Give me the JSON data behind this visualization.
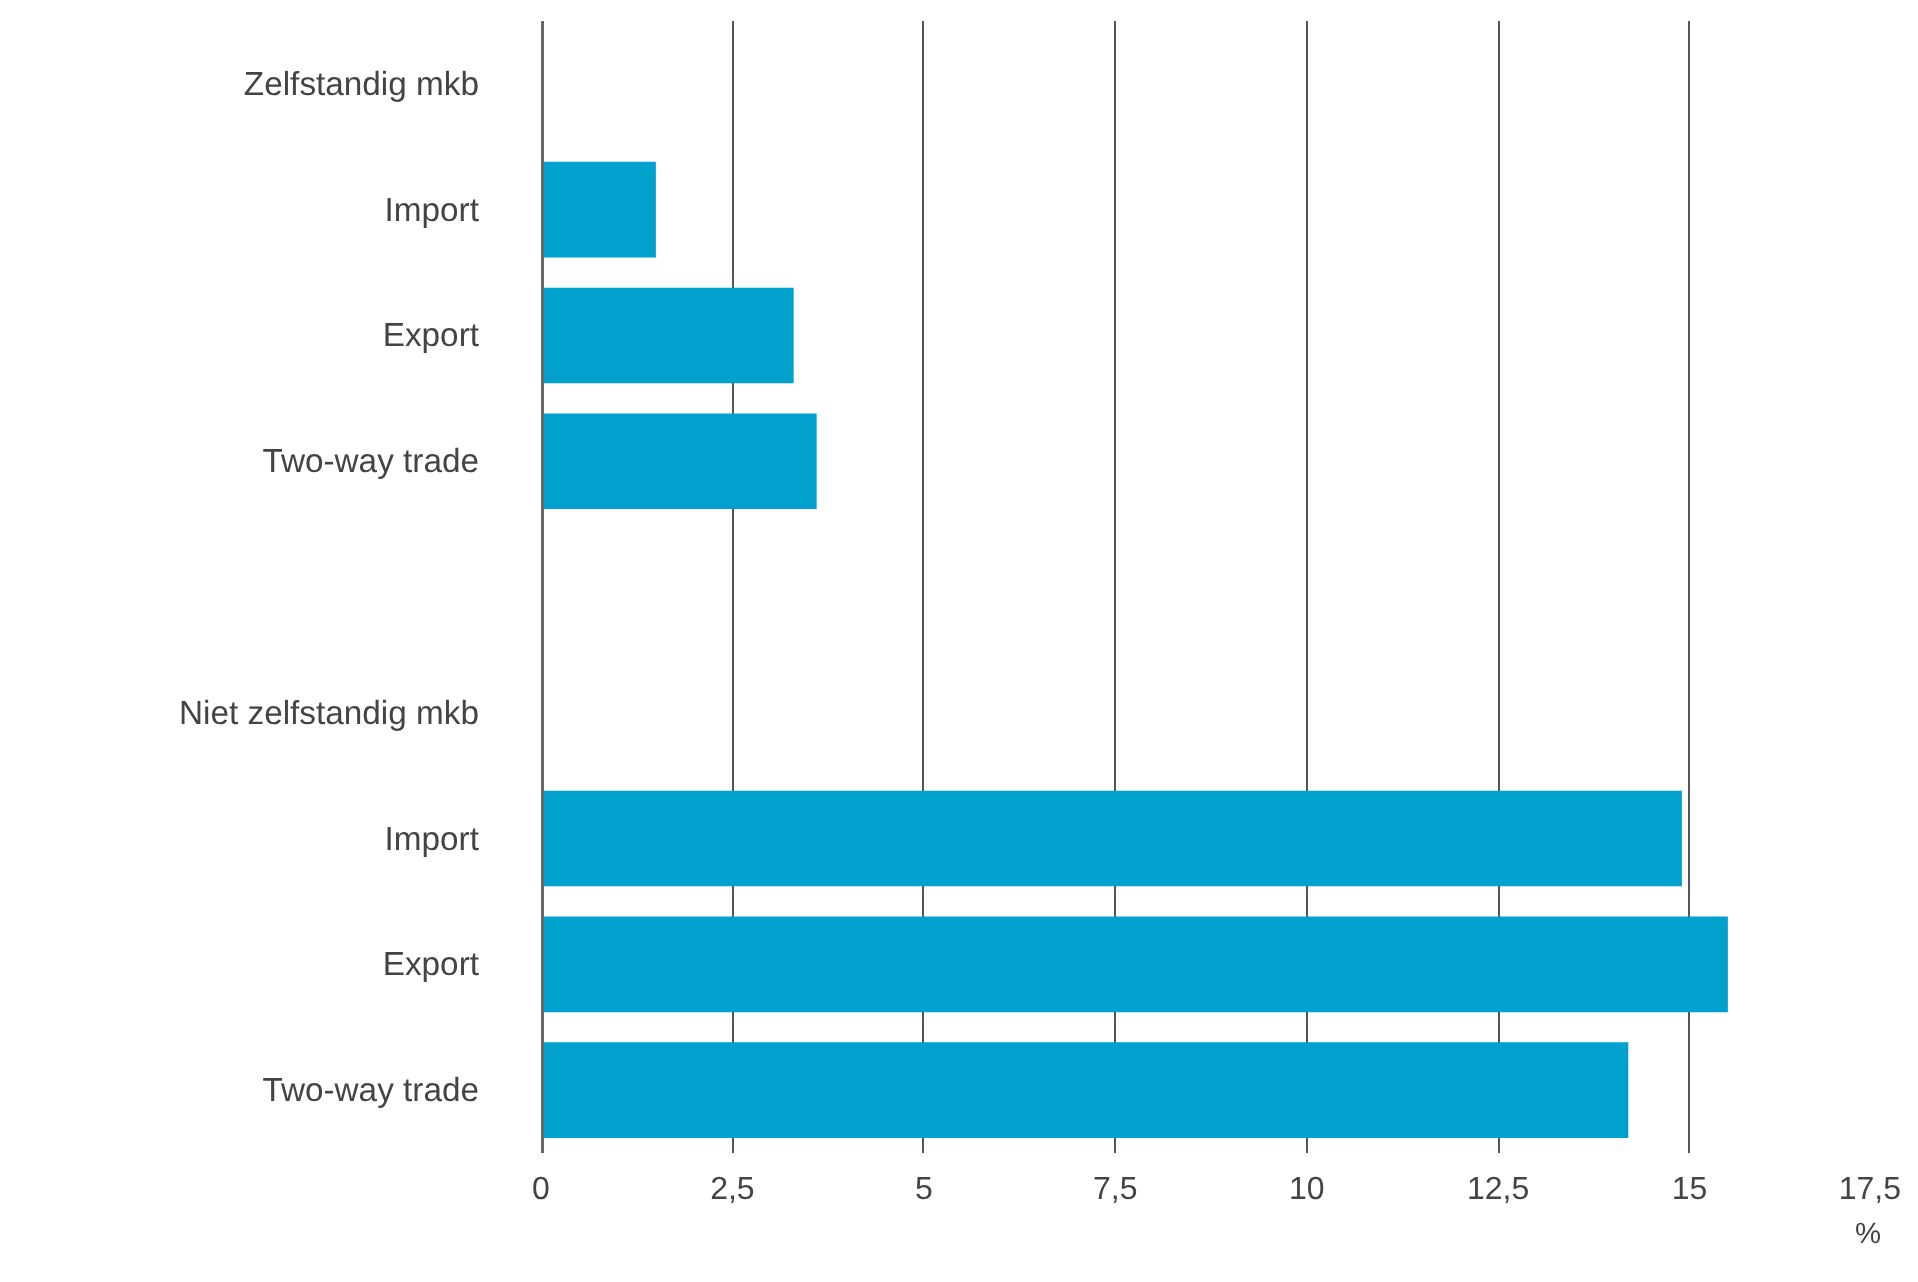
{
  "chart_data": {
    "type": "bar",
    "orientation": "horizontal",
    "categories": [
      "Zelfstandig mkb",
      "Import",
      "Export",
      "Two-way trade",
      null,
      "Niet zelfstandig mkb",
      "Import",
      "Export",
      "Two-way trade"
    ],
    "values": [
      null,
      1.5,
      3.3,
      3.6,
      null,
      null,
      14.9,
      15.5,
      14.2
    ],
    "color": "#00a1cd",
    "xlabel": "%",
    "xlim": [
      0,
      17.5
    ],
    "xticks": [
      0,
      {
        "value": 2.5,
        "label": "2,5"
      },
      5,
      {
        "value": 7.5,
        "label": "7,5"
      },
      10,
      {
        "value": 12.5,
        "label": "12,5"
      },
      15,
      {
        "value": 17.5,
        "label": "17,5"
      }
    ],
    "grid": "x"
  }
}
